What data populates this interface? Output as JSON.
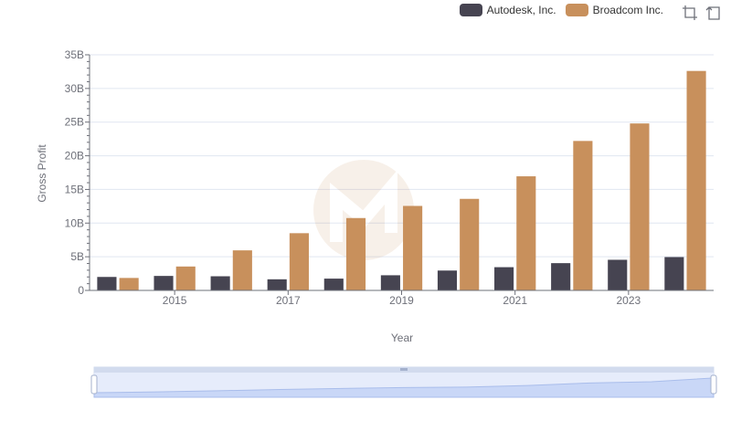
{
  "colors": {
    "autodesk": "#464451",
    "broadcom": "#c8905c",
    "grid": "#e0e6f1",
    "axis": "#6e7079"
  },
  "legend": {
    "items": [
      {
        "label": "Autodesk, Inc."
      },
      {
        "label": "Broadcom Inc."
      }
    ]
  },
  "toolbox": {
    "icons": [
      "zoom-icon",
      "restore-icon"
    ]
  },
  "chart_data": {
    "type": "bar",
    "title": "",
    "xlabel": "Year",
    "ylabel": "Gross Profit",
    "ylim": [
      0,
      35000000000
    ],
    "y_ticks": [
      "0",
      "5B",
      "10B",
      "15B",
      "20B",
      "25B",
      "30B",
      "35B"
    ],
    "categories": [
      "2014",
      "2015",
      "2016",
      "2017",
      "2018",
      "2019",
      "2020",
      "2021",
      "2022",
      "2023",
      "2024"
    ],
    "x_tick_labels": [
      "2015",
      "2017",
      "2019",
      "2021",
      "2023"
    ],
    "series": [
      {
        "name": "Autodesk, Inc.",
        "values": [
          2000000000,
          2150000000,
          2100000000,
          1650000000,
          1750000000,
          2250000000,
          2950000000,
          3450000000,
          4050000000,
          4550000000,
          4950000000
        ]
      },
      {
        "name": "Broadcom Inc.",
        "values": [
          1850000000,
          3550000000,
          5950000000,
          8500000000,
          10750000000,
          12550000000,
          13600000000,
          16950000000,
          22200000000,
          24800000000,
          32600000000
        ]
      }
    ]
  }
}
